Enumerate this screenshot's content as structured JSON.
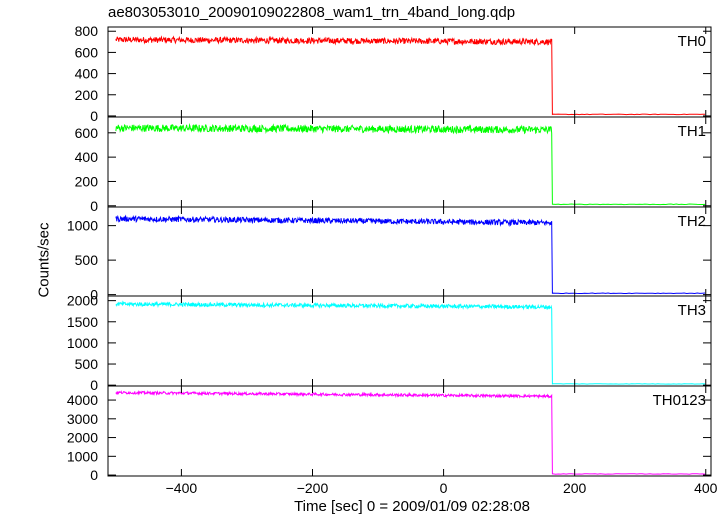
{
  "title": "ae803053010_20090109022808_wam1_trn_4band_long.qdp",
  "ylabel": "Counts/sec",
  "xlabel": "Time [sec] 0 = 2009/01/09 02:28:08",
  "chart_data": {
    "type": "line",
    "xlim": [
      -512,
      408
    ],
    "x_ticks": [
      -400,
      -200,
      0,
      200,
      400
    ],
    "step_time": 165,
    "panels": [
      {
        "name": "TH0",
        "color": "#ff0000",
        "ylim": [
          -10,
          840
        ],
        "y_ticks": [
          0,
          200,
          400,
          600,
          800
        ],
        "level_start": 720,
        "level_end": 700,
        "noise": 28,
        "post_level": 15
      },
      {
        "name": "TH1",
        "color": "#00ff00",
        "ylim": [
          -10,
          730
        ],
        "y_ticks": [
          0,
          200,
          400,
          600
        ],
        "level_start": 640,
        "level_end": 625,
        "noise": 30,
        "post_level": 12
      },
      {
        "name": "TH2",
        "color": "#0000ff",
        "ylim": [
          -20,
          1270
        ],
        "y_ticks": [
          0,
          500,
          1000
        ],
        "level_start": 1100,
        "level_end": 1040,
        "noise": 40,
        "post_level": 20
      },
      {
        "name": "TH3",
        "color": "#00ffff",
        "ylim": [
          -20,
          2110
        ],
        "y_ticks": [
          0,
          500,
          1000,
          1500,
          2000
        ],
        "level_start": 1920,
        "level_end": 1850,
        "noise": 45,
        "post_level": 30
      },
      {
        "name": "TH0123",
        "color": "#ff00ff",
        "ylim": [
          -50,
          4750
        ],
        "y_ticks": [
          0,
          1000,
          2000,
          3000,
          4000
        ],
        "level_start": 4400,
        "level_end": 4200,
        "noise": 70,
        "post_level": 60
      }
    ]
  }
}
